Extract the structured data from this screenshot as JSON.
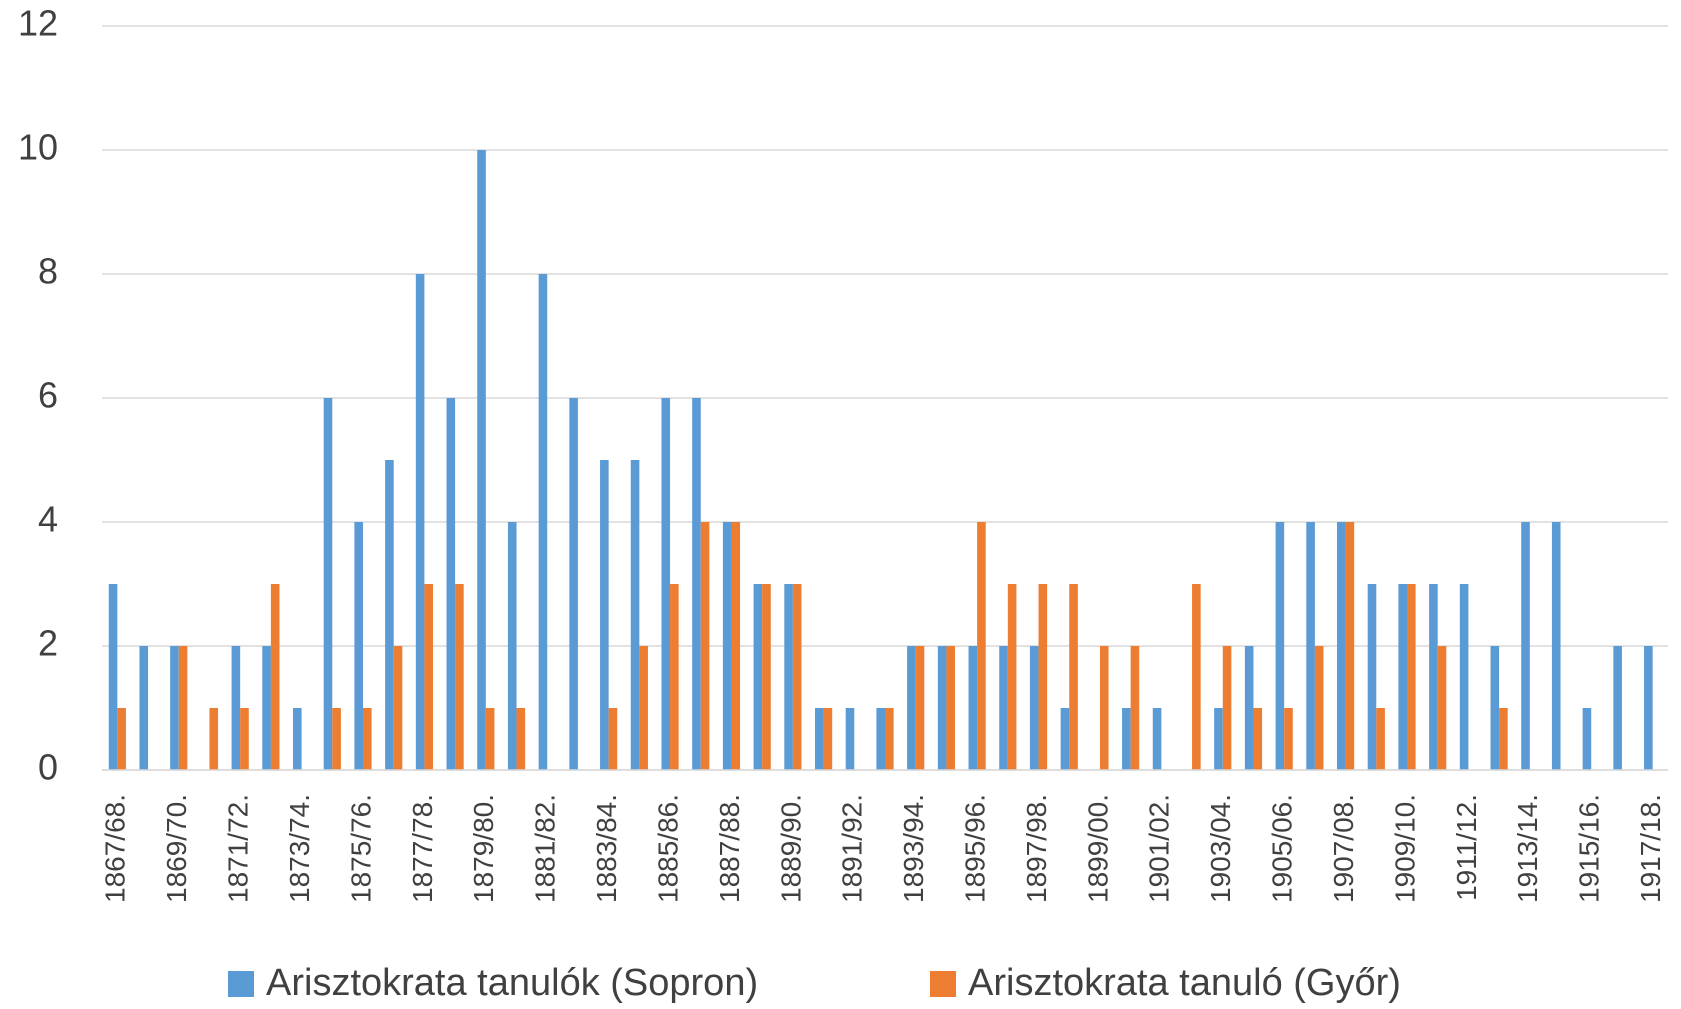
{
  "chart_data": {
    "type": "bar",
    "categories": [
      "1867/68.",
      null,
      "1869/70.",
      null,
      "1871/72.",
      null,
      "1873/74.",
      null,
      "1875/76.",
      null,
      "1877/78.",
      null,
      "1879/80.",
      null,
      "1881/82.",
      null,
      "1883/84.",
      null,
      "1885/86.",
      null,
      "1887/88.",
      null,
      "1889/90.",
      null,
      "1891/92.",
      null,
      "1893/94.",
      null,
      "1895/96.",
      null,
      "1897/98.",
      null,
      "1899/00.",
      null,
      "1901/02.",
      null,
      "1903/04.",
      null,
      "1905/06.",
      null,
      "1907/08.",
      null,
      "1909/10.",
      null,
      "1911/12.",
      null,
      "1913/14.",
      null,
      "1915/16.",
      null,
      "1917/18."
    ],
    "series": [
      {
        "name": "Arisztokrata tanulók (Sopron)",
        "color": "#5b9bd5",
        "values": [
          3,
          2,
          2,
          0,
          2,
          2,
          1,
          6,
          4,
          5,
          8,
          6,
          10,
          4,
          8,
          6,
          5,
          5,
          6,
          6,
          4,
          3,
          3,
          1,
          1,
          1,
          2,
          2,
          2,
          2,
          2,
          1,
          0,
          1,
          1,
          0,
          1,
          2,
          4,
          4,
          4,
          3,
          3,
          3,
          3,
          2,
          4,
          4,
          1,
          2,
          2
        ]
      },
      {
        "name": "Arisztokrata tanuló (Győr)",
        "color": "#ed7d31",
        "values": [
          1,
          0,
          2,
          1,
          1,
          3,
          0,
          1,
          1,
          2,
          3,
          3,
          1,
          1,
          0,
          0,
          1,
          2,
          3,
          4,
          4,
          3,
          3,
          1,
          0,
          1,
          2,
          2,
          4,
          3,
          3,
          3,
          2,
          2,
          0,
          3,
          2,
          1,
          1,
          2,
          4,
          1,
          3,
          2,
          0,
          1,
          0,
          0,
          0,
          0,
          0
        ]
      }
    ],
    "ylim": [
      0,
      12
    ],
    "yticks": [
      0,
      2,
      4,
      6,
      8,
      10,
      12
    ],
    "grid": true,
    "legend": "bottom"
  }
}
